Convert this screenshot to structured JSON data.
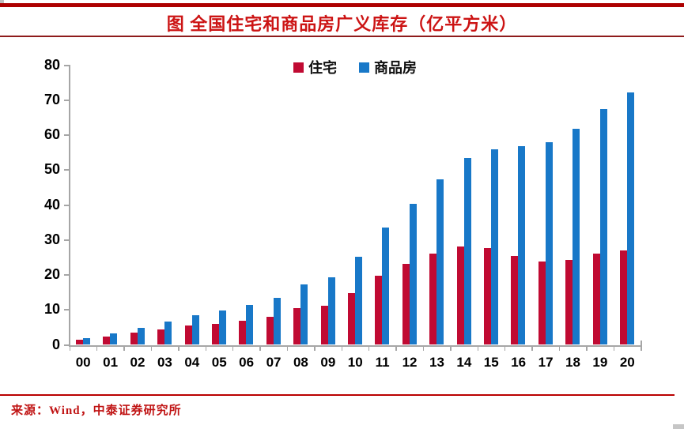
{
  "header": {
    "title": "图  全国住宅和商品房广义库存（亿平方米）"
  },
  "footer": {
    "source": "来源：Wind，中泰证券研究所"
  },
  "colors": {
    "residential_red": "#c00a32",
    "commodity_blue": "#1878c8",
    "title_red": "#cc1414",
    "top_bar_red": "#ad0000",
    "divider_dark_red": "#8e1b1b",
    "bottom_line_red": "#b90000",
    "axis_gray": "#a6a6a6",
    "label_black": "#000000"
  },
  "chart_data": {
    "type": "bar",
    "title": "图  全国住宅和商品房广义库存（亿平方米）",
    "xlabel": "",
    "ylabel": "",
    "unit": "亿平方米",
    "categories": [
      "00",
      "01",
      "02",
      "03",
      "04",
      "05",
      "06",
      "07",
      "08",
      "09",
      "10",
      "11",
      "12",
      "13",
      "14",
      "15",
      "16",
      "17",
      "18",
      "19",
      "20"
    ],
    "series": [
      {
        "name": "住宅",
        "color": "#c00a32",
        "values": [
          1.4,
          2.3,
          3.5,
          4.5,
          5.6,
          6.0,
          6.9,
          8.0,
          10.5,
          11.2,
          14.9,
          19.8,
          23.2,
          26.1,
          28.2,
          27.7,
          25.5,
          23.9,
          24.4,
          26.0,
          27.0
        ]
      },
      {
        "name": "商品房",
        "color": "#1878c8",
        "values": [
          1.9,
          3.3,
          4.9,
          6.7,
          8.5,
          9.8,
          11.5,
          13.4,
          17.2,
          19.3,
          25.3,
          33.5,
          40.3,
          47.3,
          53.4,
          55.9,
          56.9,
          58.0,
          61.8,
          67.4,
          72.3
        ]
      }
    ],
    "ylim": [
      0,
      80
    ],
    "yticks": [
      0,
      10,
      20,
      30,
      40,
      50,
      60,
      70,
      80
    ],
    "grid": false,
    "legend_position": "top-center"
  }
}
